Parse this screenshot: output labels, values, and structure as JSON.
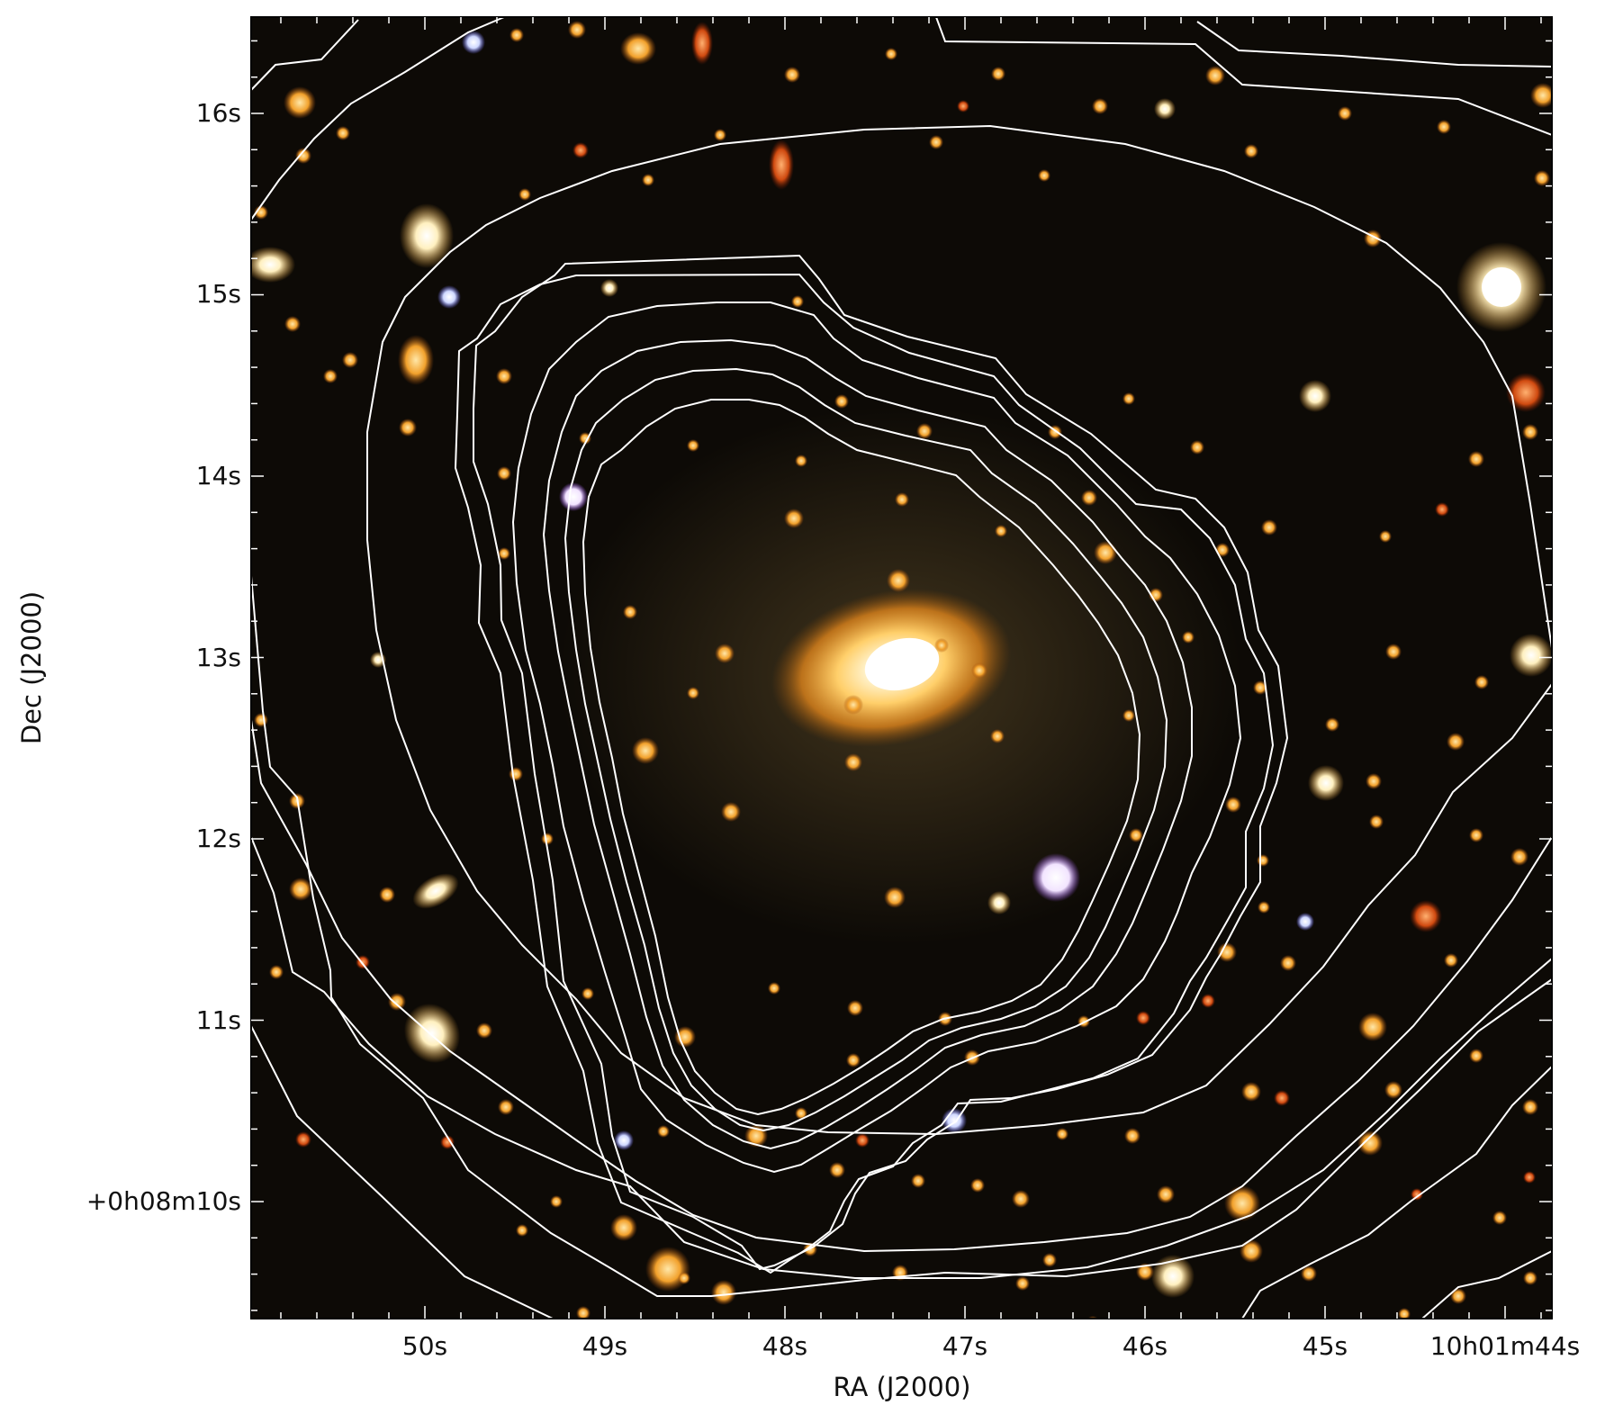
{
  "figure": {
    "x_axis_label": "RA (J2000)",
    "y_axis_label": "Dec (J2000)",
    "x_tick_labels": [
      "50s",
      "49s",
      "48s",
      "47s",
      "46s",
      "45s",
      "10h01m44s"
    ],
    "y_tick_labels": [
      "16s",
      "15s",
      "14s",
      "13s",
      "12s",
      "11s",
      "+0h08m10s"
    ],
    "contour_color": "#ffffff",
    "background_color": "#0d0a06",
    "cluster_core_color": "#ffd27a"
  }
}
